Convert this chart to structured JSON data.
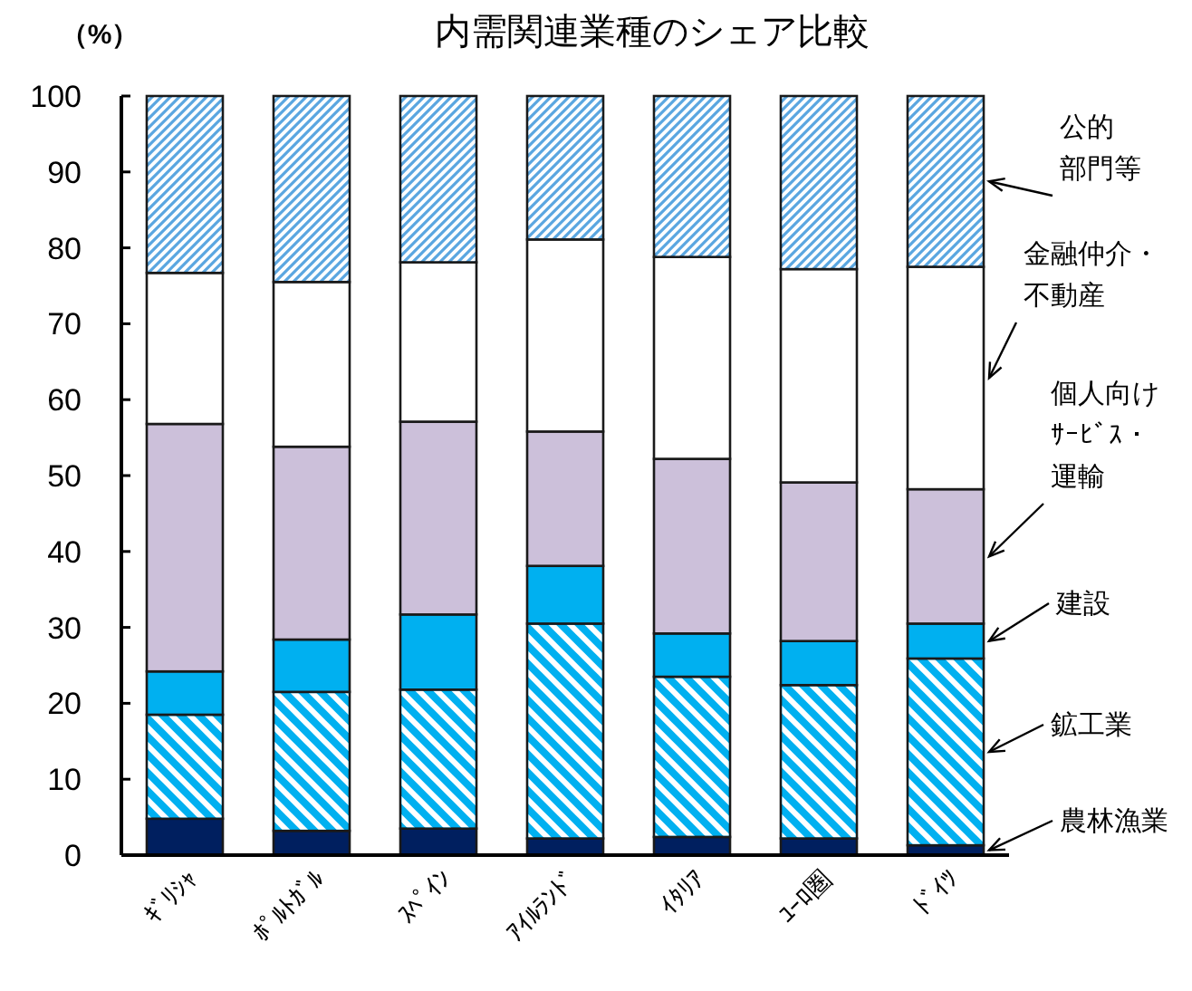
{
  "chart_data": {
    "type": "bar",
    "stacked": true,
    "title": "内需関連業種のシェア比較",
    "ylabel": "（%）",
    "categories": [
      "ｷﾞﾘｼｬ",
      "ﾎﾟﾙﾄｶﾞﾙ",
      "ｽﾍﾟｲﾝ",
      "ｱｲﾙﾗﾝﾄﾞ",
      "ｲﾀﾘｱ",
      "ﾕｰﾛ圏",
      "ﾄﾞｲﾂ"
    ],
    "series": [
      {
        "name": "農林漁業",
        "color": "#001f5f",
        "values": [
          4.8,
          3.2,
          3.5,
          2.2,
          2.4,
          2.2,
          1.3
        ]
      },
      {
        "name": "鉱工業",
        "color": "#00b0f0",
        "values": [
          13.7,
          18.3,
          18.3,
          28.3,
          21.1,
          20.2,
          24.6
        ]
      },
      {
        "name": "建設",
        "color": "#00b0f0",
        "values": [
          5.7,
          6.9,
          9.9,
          7.6,
          5.7,
          5.8,
          4.6
        ]
      },
      {
        "name": "個人向けｻｰﾋﾞｽ・運輸",
        "color": "#ccc0da",
        "values": [
          32.6,
          25.4,
          25.4,
          17.7,
          23.0,
          20.9,
          17.7
        ]
      },
      {
        "name": "金融仲介・不動産",
        "color": "#ffffff",
        "values": [
          19.9,
          21.7,
          21.0,
          25.3,
          26.6,
          28.1,
          29.3
        ]
      },
      {
        "name": "公的部門等",
        "color": "#5aa6e0",
        "values": [
          23.3,
          24.5,
          21.9,
          18.9,
          21.2,
          22.8,
          22.5
        ]
      }
    ],
    "ylim": [
      0,
      100
    ],
    "yticks": [
      0,
      10,
      20,
      30,
      40,
      50,
      60,
      70,
      80,
      90,
      100
    ],
    "grid": false
  }
}
